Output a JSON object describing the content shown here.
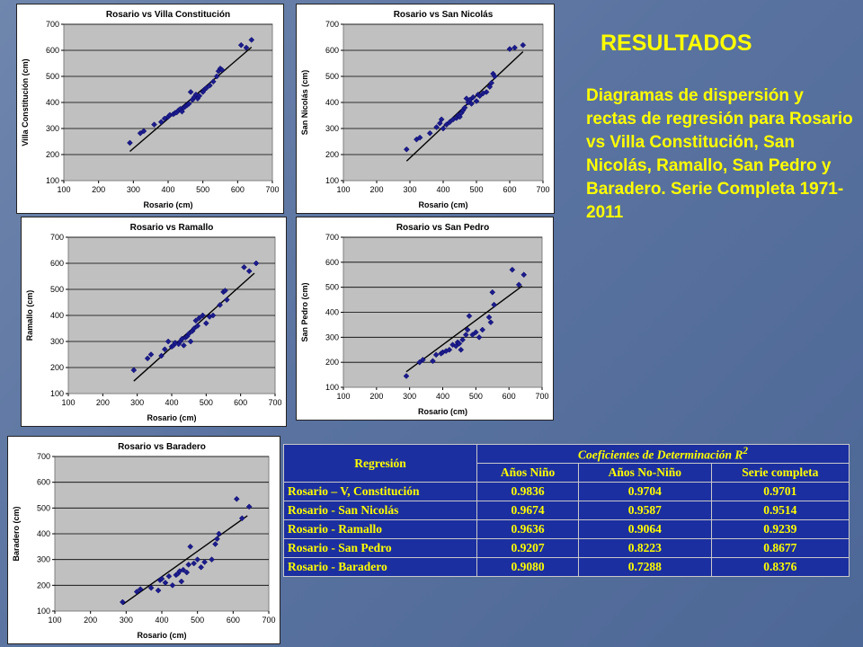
{
  "heading": "RESULTADOS",
  "description": "Diagramas de dispersión y rectas de regresión para Rosario vs Villa Constitución, San Nicolás, Ramallo, San Pedro y Baradero. Serie Completa 1971-2011",
  "colors": {
    "marker": "#1c1c8c",
    "line": "#000000",
    "plot_bg": "#c0c0c0",
    "table_bg": "#1c2fa0",
    "table_text": "#ffff00",
    "heading_text": "#ffff00"
  },
  "table": {
    "header_regresion": "Regresión",
    "header_coef": "Coeficientes de Determinación R",
    "header_coef_sup": "2",
    "col_headers": [
      "Años Niño",
      "Años No-Niño",
      "Serie completa"
    ],
    "rows": [
      {
        "label": "Rosario – V, Constitución",
        "values": [
          "0.9836",
          "0.9704",
          "0.9701"
        ]
      },
      {
        "label": "Rosario - San Nicolás",
        "values": [
          "0.9674",
          "0.9587",
          "0.9514"
        ]
      },
      {
        "label": "Rosario - Ramallo",
        "values": [
          "0.9636",
          "0.9064",
          "0.9239"
        ]
      },
      {
        "label": "Rosario - San Pedro",
        "values": [
          "0.9207",
          "0.8223",
          "0.8677"
        ]
      },
      {
        "label": "Rosario - Baradero",
        "values": [
          "0.9080",
          "0.7288",
          "0.8376"
        ]
      }
    ]
  },
  "chart_data": [
    {
      "type": "scatter",
      "title": "Rosario vs Villa Constitución",
      "xlabel": "Rosario (cm)",
      "ylabel": "Villa Constitución (cm)",
      "xlim": [
        100,
        700
      ],
      "ylim": [
        100,
        700
      ],
      "xticks": [
        100,
        200,
        300,
        400,
        500,
        600,
        700
      ],
      "yticks": [
        100,
        200,
        300,
        400,
        500,
        600,
        700
      ],
      "grid": "horizontal",
      "points": [
        [
          290,
          245
        ],
        [
          320,
          282
        ],
        [
          330,
          290
        ],
        [
          360,
          315
        ],
        [
          380,
          325
        ],
        [
          390,
          338
        ],
        [
          400,
          345
        ],
        [
          405,
          352
        ],
        [
          415,
          355
        ],
        [
          420,
          360
        ],
        [
          425,
          362
        ],
        [
          430,
          370
        ],
        [
          435,
          375
        ],
        [
          440,
          365
        ],
        [
          445,
          380
        ],
        [
          450,
          385
        ],
        [
          455,
          390
        ],
        [
          460,
          395
        ],
        [
          465,
          440
        ],
        [
          470,
          410
        ],
        [
          475,
          420
        ],
        [
          480,
          430
        ],
        [
          485,
          415
        ],
        [
          490,
          425
        ],
        [
          500,
          440
        ],
        [
          505,
          450
        ],
        [
          510,
          455
        ],
        [
          520,
          465
        ],
        [
          530,
          480
        ],
        [
          540,
          500
        ],
        [
          545,
          520
        ],
        [
          550,
          530
        ],
        [
          555,
          525
        ],
        [
          610,
          620
        ],
        [
          625,
          610
        ],
        [
          640,
          640
        ]
      ],
      "fit": [
        [
          290,
          212
        ],
        [
          640,
          612
        ]
      ]
    },
    {
      "type": "scatter",
      "title": "Rosario vs San Nicolás",
      "xlabel": "Rosario (cm)",
      "ylabel": "San Nicolás (cm)",
      "xlim": [
        100,
        700
      ],
      "ylim": [
        100,
        700
      ],
      "xticks": [
        100,
        200,
        300,
        400,
        500,
        600,
        700
      ],
      "yticks": [
        100,
        200,
        300,
        400,
        500,
        600,
        700
      ],
      "grid": "horizontal",
      "points": [
        [
          290,
          220
        ],
        [
          320,
          258
        ],
        [
          330,
          265
        ],
        [
          360,
          282
        ],
        [
          380,
          305
        ],
        [
          390,
          320
        ],
        [
          395,
          335
        ],
        [
          400,
          300
        ],
        [
          410,
          315
        ],
        [
          420,
          325
        ],
        [
          430,
          335
        ],
        [
          440,
          340
        ],
        [
          445,
          350
        ],
        [
          450,
          345
        ],
        [
          455,
          360
        ],
        [
          460,
          370
        ],
        [
          465,
          380
        ],
        [
          470,
          415
        ],
        [
          475,
          400
        ],
        [
          480,
          410
        ],
        [
          485,
          395
        ],
        [
          490,
          420
        ],
        [
          500,
          405
        ],
        [
          505,
          430
        ],
        [
          510,
          425
        ],
        [
          520,
          435
        ],
        [
          530,
          440
        ],
        [
          540,
          460
        ],
        [
          545,
          475
        ],
        [
          550,
          510
        ],
        [
          555,
          500
        ],
        [
          600,
          605
        ],
        [
          615,
          610
        ],
        [
          640,
          620
        ]
      ],
      "fit": [
        [
          290,
          175
        ],
        [
          640,
          595
        ]
      ]
    },
    {
      "type": "scatter",
      "title": "Rosario vs Ramallo",
      "xlabel": "Rosario (cm)",
      "ylabel": "Ramallo (cm)",
      "xlim": [
        100,
        700
      ],
      "ylim": [
        100,
        700
      ],
      "xticks": [
        100,
        200,
        300,
        400,
        500,
        600,
        700
      ],
      "yticks": [
        100,
        200,
        300,
        400,
        500,
        600,
        700
      ],
      "grid": "horizontal",
      "points": [
        [
          290,
          190
        ],
        [
          330,
          235
        ],
        [
          340,
          250
        ],
        [
          370,
          245
        ],
        [
          380,
          270
        ],
        [
          390,
          300
        ],
        [
          400,
          280
        ],
        [
          405,
          285
        ],
        [
          410,
          295
        ],
        [
          420,
          290
        ],
        [
          425,
          300
        ],
        [
          430,
          310
        ],
        [
          435,
          285
        ],
        [
          440,
          315
        ],
        [
          445,
          320
        ],
        [
          450,
          330
        ],
        [
          455,
          300
        ],
        [
          460,
          340
        ],
        [
          465,
          350
        ],
        [
          470,
          380
        ],
        [
          475,
          360
        ],
        [
          480,
          390
        ],
        [
          490,
          400
        ],
        [
          500,
          370
        ],
        [
          510,
          395
        ],
        [
          520,
          400
        ],
        [
          540,
          440
        ],
        [
          550,
          490
        ],
        [
          555,
          495
        ],
        [
          560,
          460
        ],
        [
          610,
          585
        ],
        [
          625,
          570
        ],
        [
          645,
          600
        ]
      ],
      "fit": [
        [
          290,
          148
        ],
        [
          640,
          562
        ]
      ]
    },
    {
      "type": "scatter",
      "title": "Rosario vs San Pedro",
      "xlabel": "Rosario (cm)",
      "ylabel": "San Pedro (cm)",
      "xlim": [
        100,
        700
      ],
      "ylim": [
        100,
        700
      ],
      "xticks": [
        100,
        200,
        300,
        400,
        500,
        600,
        700
      ],
      "yticks": [
        100,
        200,
        300,
        400,
        500,
        600,
        700
      ],
      "grid": "horizontal",
      "points": [
        [
          290,
          145
        ],
        [
          330,
          200
        ],
        [
          340,
          210
        ],
        [
          370,
          205
        ],
        [
          380,
          230
        ],
        [
          395,
          235
        ],
        [
          400,
          240
        ],
        [
          410,
          245
        ],
        [
          420,
          250
        ],
        [
          430,
          270
        ],
        [
          440,
          265
        ],
        [
          445,
          280
        ],
        [
          450,
          275
        ],
        [
          455,
          250
        ],
        [
          460,
          290
        ],
        [
          470,
          310
        ],
        [
          475,
          330
        ],
        [
          480,
          385
        ],
        [
          490,
          310
        ],
        [
          500,
          320
        ],
        [
          510,
          300
        ],
        [
          520,
          330
        ],
        [
          540,
          380
        ],
        [
          545,
          360
        ],
        [
          550,
          480
        ],
        [
          555,
          430
        ],
        [
          610,
          570
        ],
        [
          630,
          510
        ],
        [
          645,
          550
        ]
      ],
      "fit": [
        [
          290,
          162
        ],
        [
          640,
          505
        ]
      ]
    },
    {
      "type": "scatter",
      "title": "Rosario vs Baradero",
      "xlabel": "Rosario (cm)",
      "ylabel": "Baradero (cm)",
      "xlim": [
        100,
        700
      ],
      "ylim": [
        100,
        700
      ],
      "xticks": [
        100,
        200,
        300,
        400,
        500,
        600,
        700
      ],
      "yticks": [
        100,
        200,
        300,
        400,
        500,
        600,
        700
      ],
      "grid": "horizontal",
      "points": [
        [
          290,
          135
        ],
        [
          330,
          175
        ],
        [
          340,
          185
        ],
        [
          370,
          190
        ],
        [
          390,
          180
        ],
        [
          395,
          220
        ],
        [
          400,
          225
        ],
        [
          410,
          210
        ],
        [
          420,
          235
        ],
        [
          430,
          200
        ],
        [
          440,
          240
        ],
        [
          445,
          245
        ],
        [
          450,
          255
        ],
        [
          455,
          215
        ],
        [
          460,
          260
        ],
        [
          470,
          250
        ],
        [
          475,
          280
        ],
        [
          480,
          350
        ],
        [
          490,
          285
        ],
        [
          500,
          300
        ],
        [
          510,
          270
        ],
        [
          520,
          290
        ],
        [
          540,
          300
        ],
        [
          550,
          360
        ],
        [
          555,
          380
        ],
        [
          560,
          400
        ],
        [
          610,
          535
        ],
        [
          625,
          460
        ],
        [
          645,
          505
        ]
      ],
      "fit": [
        [
          290,
          125
        ],
        [
          640,
          470
        ]
      ]
    }
  ]
}
